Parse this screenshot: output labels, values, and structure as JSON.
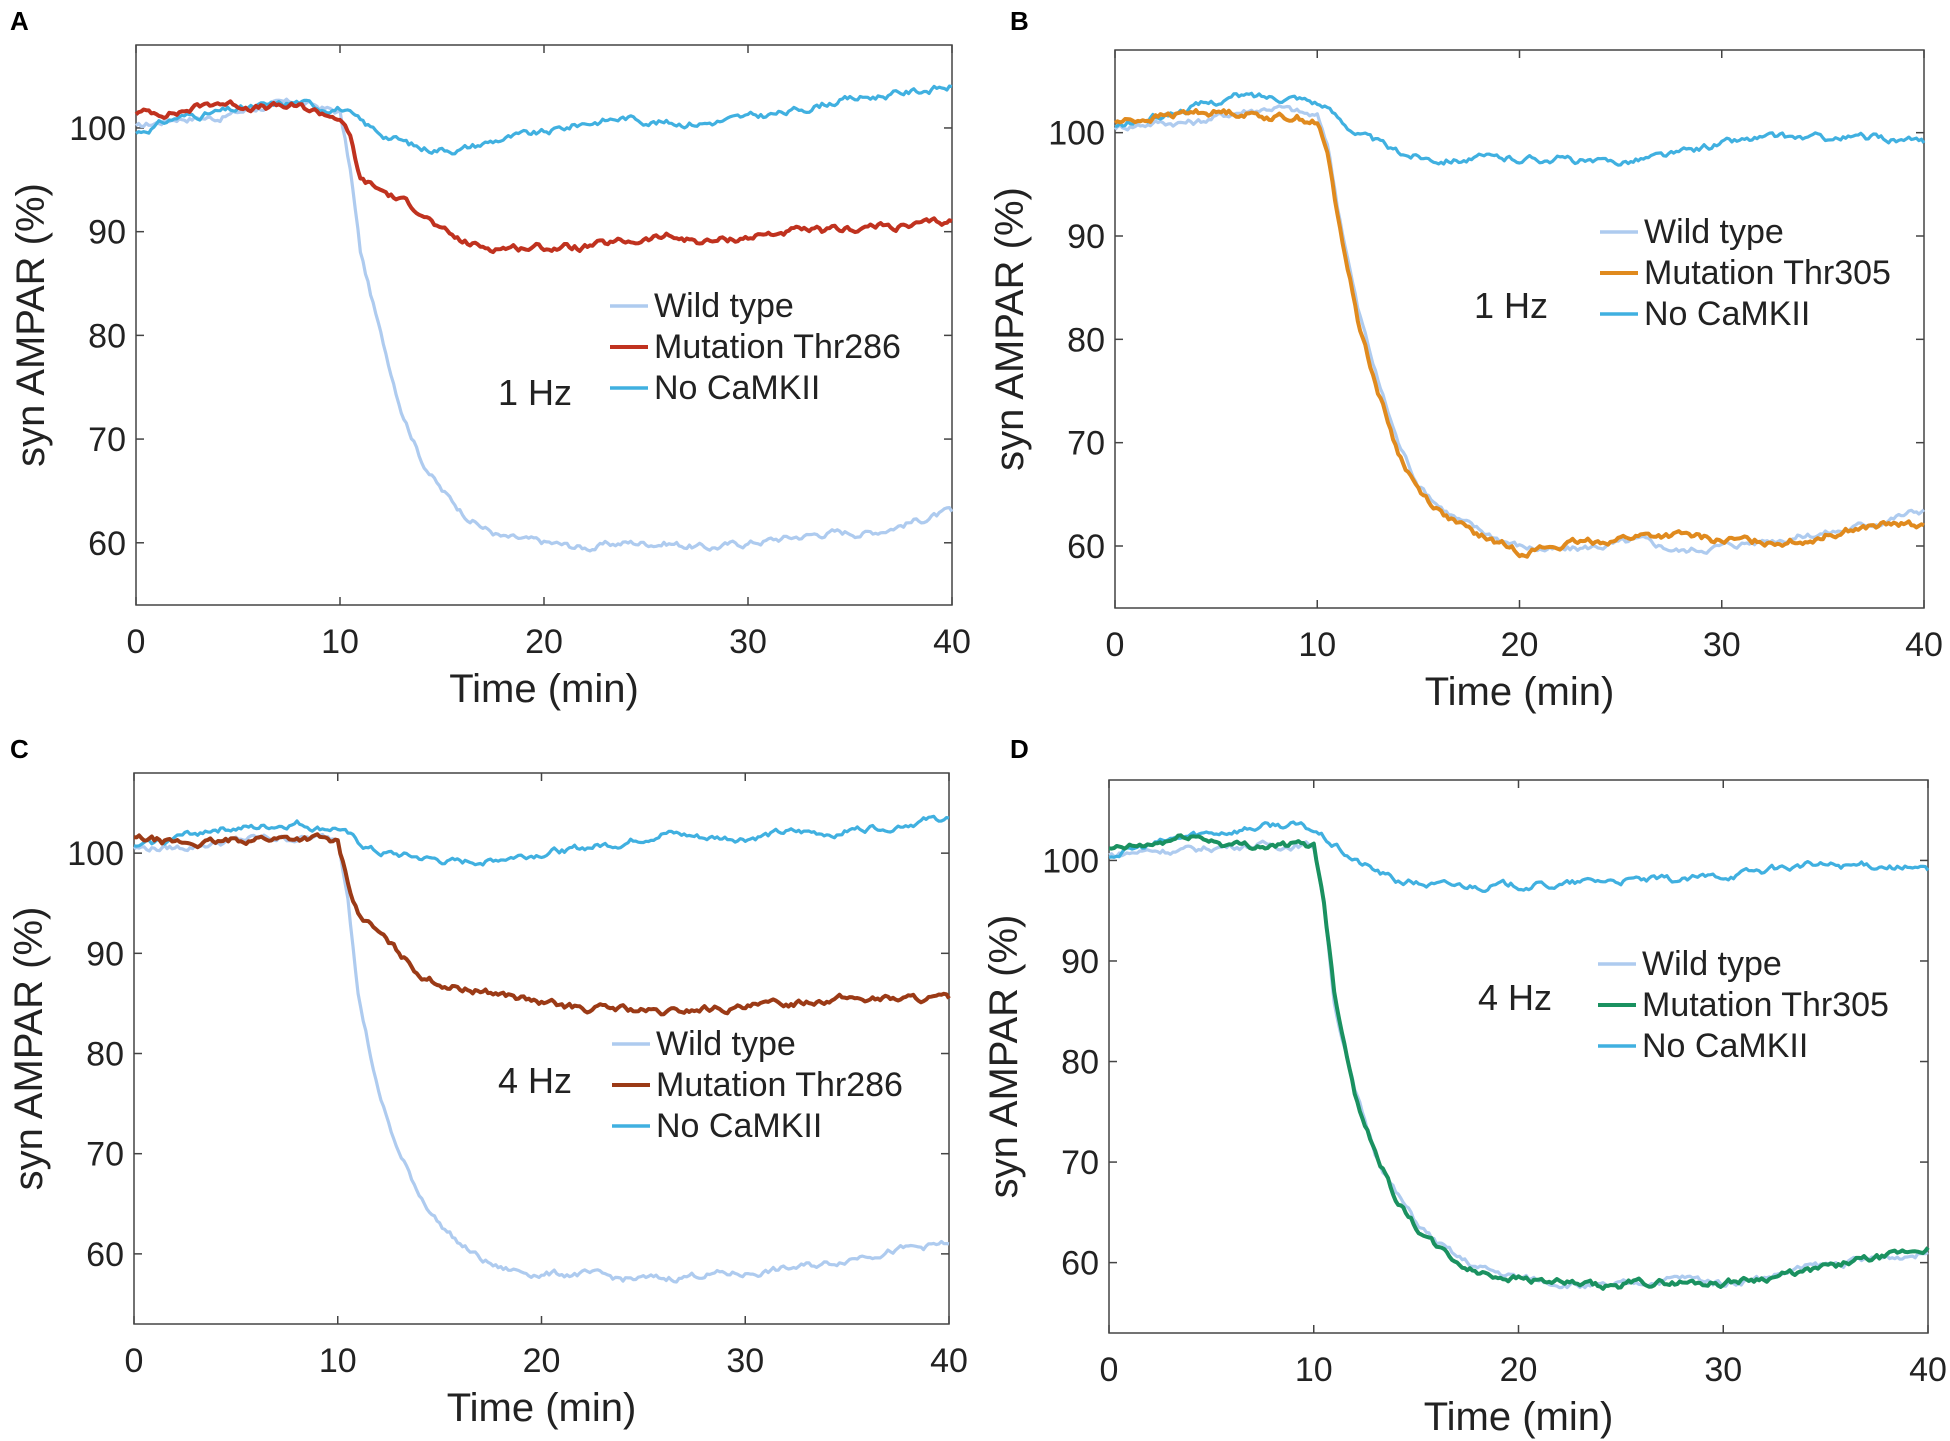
{
  "chart_data": [
    {
      "panel": "A",
      "type": "line",
      "annotation": "1 Hz",
      "xlabel": "Time (min)",
      "ylabel": "syn AMPAR (%)",
      "xlim": [
        0,
        40
      ],
      "ylim": [
        54,
        108
      ],
      "xticks": [
        0,
        10,
        20,
        30,
        40
      ],
      "yticks": [
        60,
        70,
        80,
        90,
        100
      ],
      "legend_position": "center-right",
      "series": [
        {
          "name": "Wild type",
          "color": "#aecbef",
          "x": [
            0,
            2,
            4,
            6,
            8,
            9,
            10,
            10.5,
            11,
            12,
            13,
            14,
            15,
            16,
            17,
            18,
            20,
            22,
            24,
            26,
            28,
            30,
            32,
            34,
            36,
            38,
            40
          ],
          "y": [
            100,
            101,
            101,
            102,
            102.5,
            102,
            101.5,
            96,
            88,
            80,
            73,
            68,
            65,
            63,
            61.5,
            60.5,
            60,
            59.5,
            60,
            60,
            59.5,
            60,
            60.5,
            61,
            61,
            62,
            63
          ]
        },
        {
          "name": "Mutation Thr286",
          "color": "#c0321f",
          "x": [
            0,
            2,
            4,
            6,
            8,
            9,
            10,
            10.5,
            11,
            12,
            14,
            15,
            16,
            17,
            18,
            20,
            22,
            24,
            26,
            28,
            30,
            32,
            34,
            36,
            38,
            40
          ],
          "y": [
            101.5,
            101.5,
            102.5,
            102,
            102,
            101.5,
            101,
            99,
            95,
            94,
            92,
            90,
            89,
            88.5,
            88.5,
            88.5,
            88.5,
            89,
            89.5,
            89,
            89.5,
            90,
            90,
            90.5,
            90.5,
            91
          ]
        },
        {
          "name": "No CaMKII",
          "color": "#40b0e0",
          "x": [
            0,
            2,
            4,
            6,
            8,
            9,
            10,
            11,
            12,
            14,
            16,
            18,
            20,
            22,
            24,
            26,
            28,
            30,
            32,
            34,
            36,
            38,
            40
          ],
          "y": [
            99.5,
            101,
            101.5,
            102,
            102.5,
            102,
            102,
            100.5,
            99.5,
            98,
            98,
            99,
            99.5,
            100.5,
            101,
            100.5,
            100.5,
            101,
            101.5,
            102.5,
            103,
            103.5,
            104
          ]
        }
      ]
    },
    {
      "panel": "B",
      "type": "line",
      "annotation": "1 Hz",
      "xlabel": "Time (min)",
      "ylabel": "syn AMPAR (%)",
      "xlim": [
        0,
        40
      ],
      "ylim": [
        54,
        108
      ],
      "xticks": [
        0,
        10,
        20,
        30,
        40
      ],
      "yticks": [
        60,
        70,
        80,
        90,
        100
      ],
      "legend_position": "upper-right",
      "series": [
        {
          "name": "Wild type",
          "color": "#aecbef",
          "x": [
            0,
            2,
            4,
            6,
            8,
            9,
            10,
            10.5,
            11,
            12,
            13,
            14,
            15,
            16,
            17,
            18,
            20,
            22,
            24,
            26,
            28,
            30,
            32,
            34,
            36,
            38,
            40
          ],
          "y": [
            100.5,
            101,
            101,
            102,
            102.5,
            102,
            101.5,
            99,
            93,
            83,
            76,
            70,
            66,
            64,
            62.5,
            61.5,
            60,
            59.5,
            60,
            60.5,
            59.5,
            60,
            60.5,
            61,
            61.5,
            62.5,
            63.5
          ]
        },
        {
          "name": "Mutation Thr305",
          "color": "#e08a1e",
          "x": [
            0,
            2,
            4,
            6,
            8,
            9,
            10,
            10.5,
            11,
            12,
            13,
            14,
            15,
            16,
            17,
            18,
            20,
            22,
            24,
            26,
            28,
            30,
            32,
            34,
            36,
            38,
            40
          ],
          "y": [
            101,
            101.5,
            102,
            102,
            101.5,
            101.5,
            101,
            98,
            92,
            82,
            75,
            69,
            65.5,
            63.5,
            62,
            61,
            59.5,
            60,
            60.5,
            61,
            61,
            60.5,
            60.5,
            60.5,
            61.5,
            62,
            62
          ]
        },
        {
          "name": "No CaMKII",
          "color": "#40b0e0",
          "x": [
            0,
            2,
            4,
            6,
            8,
            9,
            10,
            11,
            12,
            14,
            16,
            18,
            20,
            22,
            24,
            26,
            28,
            30,
            32,
            34,
            36,
            38,
            40
          ],
          "y": [
            100.5,
            101.5,
            102.5,
            103.5,
            103.5,
            103.5,
            103,
            101.5,
            100,
            98,
            97.5,
            97.5,
            97.5,
            97.5,
            97,
            97.5,
            98,
            99,
            99.5,
            99.5,
            99.5,
            99.5,
            99
          ]
        }
      ]
    },
    {
      "panel": "C",
      "type": "line",
      "annotation": "4 Hz",
      "xlabel": "Time (min)",
      "ylabel": "syn AMPAR (%)",
      "xlim": [
        0,
        40
      ],
      "ylim": [
        53,
        108
      ],
      "xticks": [
        0,
        10,
        20,
        30,
        40
      ],
      "yticks": [
        60,
        70,
        80,
        90,
        100
      ],
      "legend_position": "lower-center",
      "series": [
        {
          "name": "Wild type",
          "color": "#aecbef",
          "x": [
            0,
            2,
            4,
            6,
            8,
            9,
            10,
            10.5,
            11,
            12,
            13,
            14,
            15,
            16,
            17,
            18,
            20,
            22,
            24,
            26,
            28,
            30,
            32,
            34,
            36,
            38,
            40
          ],
          "y": [
            100.5,
            100.5,
            101,
            101.5,
            101.5,
            101.5,
            101.5,
            96,
            86,
            76,
            70,
            66,
            63,
            61,
            59.5,
            58.5,
            58,
            58,
            57.5,
            57.5,
            58,
            58,
            58.5,
            59,
            60,
            60.5,
            61
          ]
        },
        {
          "name": "Mutation Thr286",
          "color": "#9b3a16",
          "x": [
            0,
            2,
            4,
            6,
            8,
            9,
            10,
            10.5,
            11,
            12,
            13,
            14,
            15,
            16,
            18,
            20,
            22,
            24,
            26,
            28,
            30,
            32,
            34,
            36,
            38,
            40
          ],
          "y": [
            101.5,
            101,
            101,
            101.5,
            101.5,
            101.5,
            101,
            97,
            94,
            92,
            90,
            88,
            87,
            86.5,
            86,
            85,
            84.5,
            84.5,
            84,
            84.5,
            84.5,
            85,
            85.5,
            85.5,
            85.5,
            85.5
          ]
        },
        {
          "name": "No CaMKII",
          "color": "#40b0e0",
          "x": [
            0,
            2,
            4,
            6,
            8,
            9,
            10,
            11,
            12,
            14,
            16,
            18,
            20,
            22,
            24,
            26,
            28,
            30,
            32,
            34,
            36,
            38,
            40
          ],
          "y": [
            100.5,
            101.5,
            102.5,
            102.5,
            103,
            102.5,
            102.5,
            101,
            100,
            99.5,
            99,
            99.5,
            100,
            100.5,
            101,
            102,
            101.5,
            101.5,
            102,
            102,
            102.5,
            103,
            103.5
          ]
        }
      ]
    },
    {
      "panel": "D",
      "type": "line",
      "annotation": "4 Hz",
      "xlabel": "Time (min)",
      "ylabel": "syn AMPAR (%)",
      "xlim": [
        0,
        40
      ],
      "ylim": [
        53,
        108
      ],
      "xticks": [
        0,
        10,
        20,
        30,
        40
      ],
      "yticks": [
        60,
        70,
        80,
        90,
        100
      ],
      "legend_position": "upper-right",
      "series": [
        {
          "name": "Wild type",
          "color": "#aecbef",
          "x": [
            0,
            2,
            4,
            6,
            8,
            9,
            10,
            10.5,
            11,
            12,
            13,
            14,
            15,
            16,
            17,
            18,
            20,
            22,
            24,
            26,
            28,
            30,
            32,
            34,
            36,
            38,
            40
          ],
          "y": [
            100.5,
            101,
            101,
            101.5,
            101.5,
            101.5,
            101.5,
            96,
            86,
            77,
            71,
            67,
            64,
            62,
            60.5,
            59.5,
            58.5,
            58,
            57.5,
            58,
            58.5,
            58,
            58.5,
            59.5,
            60,
            60.5,
            61
          ]
        },
        {
          "name": "Mutation Thr305",
          "color": "#1a9160",
          "x": [
            0,
            2,
            4,
            6,
            8,
            9,
            10,
            10.5,
            11,
            12,
            13,
            14,
            15,
            16,
            17,
            18,
            20,
            22,
            24,
            26,
            28,
            30,
            32,
            34,
            36,
            38,
            40
          ],
          "y": [
            101,
            101.5,
            102.5,
            101.5,
            101.5,
            101.5,
            101.5,
            96,
            87,
            77,
            71,
            66.5,
            63.5,
            61.5,
            60,
            59,
            58.5,
            58,
            57.5,
            58,
            58,
            58,
            58.5,
            59,
            60,
            60.5,
            61.5
          ]
        },
        {
          "name": "No CaMKII",
          "color": "#40b0e0",
          "x": [
            0,
            2,
            4,
            6,
            8,
            9,
            10,
            11,
            12,
            14,
            16,
            18,
            20,
            22,
            24,
            26,
            28,
            30,
            32,
            34,
            36,
            38,
            40
          ],
          "y": [
            100.5,
            101.5,
            102.5,
            103,
            103.5,
            103.5,
            103,
            101.5,
            100,
            98,
            97.5,
            97.5,
            97.5,
            97.5,
            98,
            98,
            98,
            98.5,
            99,
            99.5,
            99.5,
            99.5,
            99
          ]
        }
      ]
    }
  ]
}
